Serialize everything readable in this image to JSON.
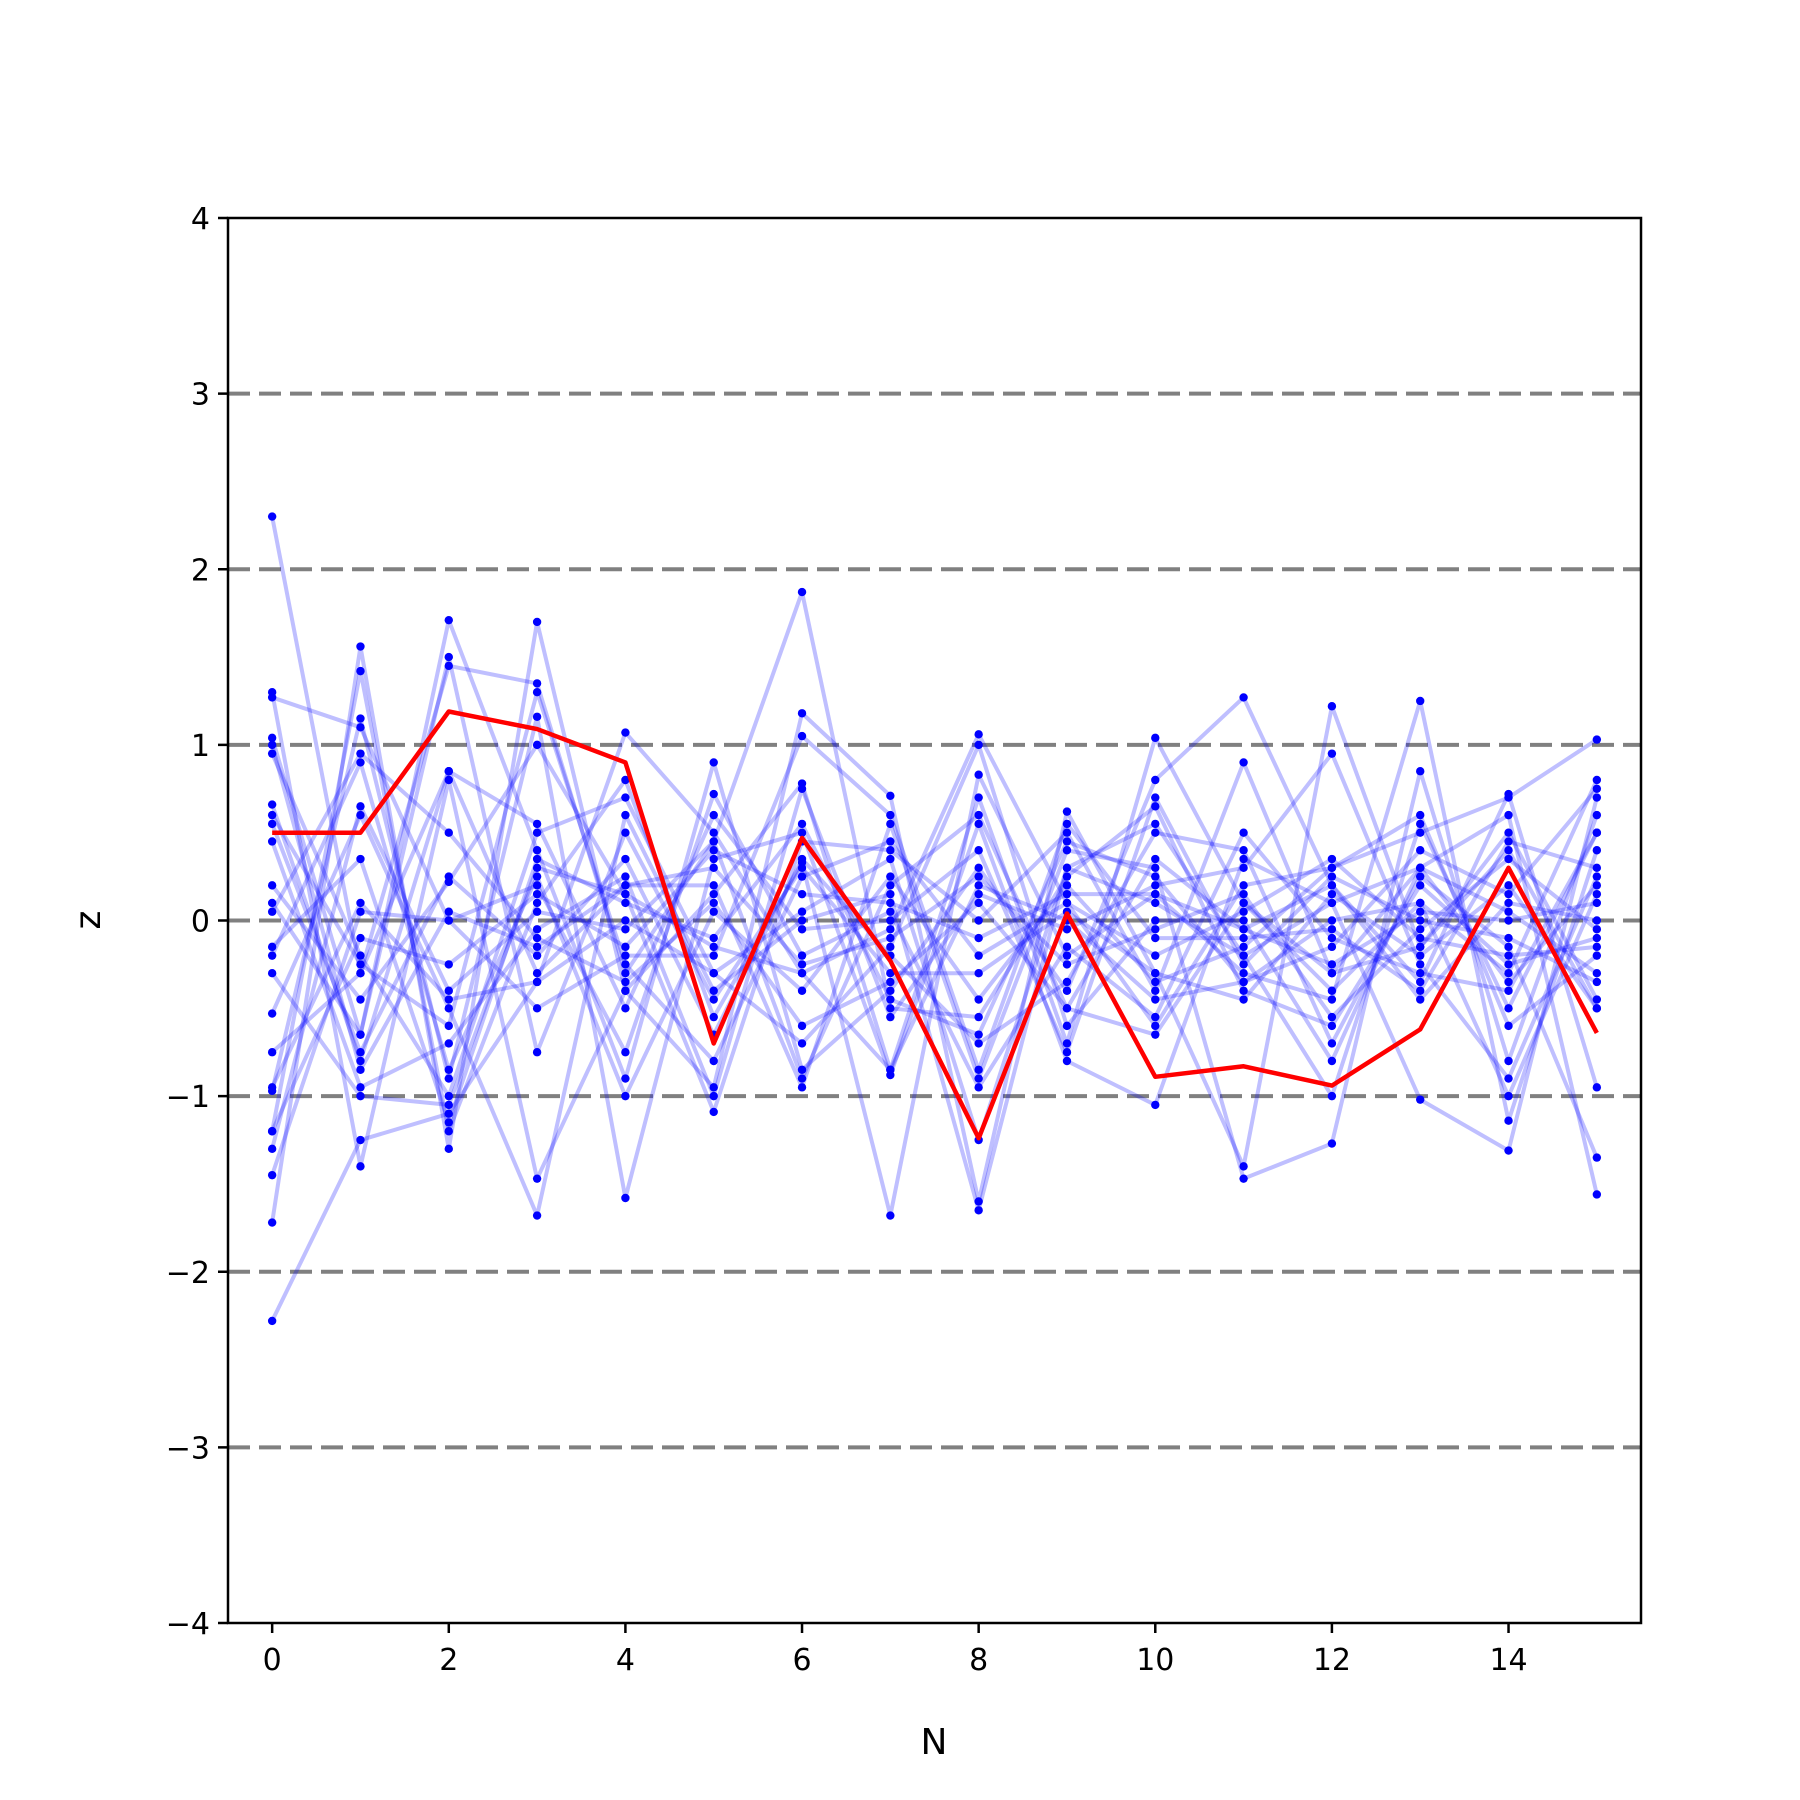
{
  "chart_data": {
    "type": "line",
    "title": "",
    "xlabel": "N",
    "ylabel": "z",
    "xlim": [
      -0.5,
      15.5
    ],
    "ylim": [
      -4,
      4
    ],
    "x_ticks": [
      0,
      2,
      4,
      6,
      8,
      10,
      12,
      14
    ],
    "y_ticks": [
      -4,
      -3,
      -2,
      -1,
      0,
      1,
      2,
      3,
      4
    ],
    "x_tick_labels": [
      "0",
      "2",
      "4",
      "6",
      "8",
      "10",
      "12",
      "14"
    ],
    "y_tick_labels": [
      "−4",
      "−3",
      "−2",
      "−1",
      "0",
      "1",
      "2",
      "3",
      "4"
    ],
    "reference_lines": [
      -3,
      -2,
      -1,
      0,
      1,
      2,
      3
    ],
    "legend": "none",
    "grid": false,
    "x": [
      0,
      1,
      2,
      3,
      4,
      5,
      6,
      7,
      8,
      9,
      10,
      11,
      12,
      13,
      14,
      15
    ],
    "highlight_series": {
      "color": "#ff0000",
      "values": [
        0.5,
        0.5,
        1.19,
        1.09,
        0.9,
        -0.7,
        0.47,
        -0.23,
        -1.24,
        0.04,
        -0.89,
        -0.83,
        -0.94,
        -0.62,
        0.3,
        -0.64
      ]
    },
    "background_series_color": "#0000ff",
    "background_series": [
      {
        "values": [
          2.3,
          -0.3,
          1.45,
          1.35,
          -0.3,
          0.45,
          1.87,
          -0.5,
          -0.55,
          0.25,
          0.65,
          -0.4,
          -0.6,
          0.2,
          -0.25,
          -0.1
        ]
      },
      {
        "values": [
          -2.28,
          -1.25,
          -1.1,
          -0.35,
          1.07,
          0.5,
          -0.3,
          -0.05,
          1.06,
          0.1,
          -0.6,
          0.2,
          0.3,
          0.5,
          0.7,
          1.03
        ]
      },
      {
        "values": [
          1.3,
          -1.4,
          0.8,
          -1.47,
          -0.4,
          0.15,
          0.78,
          -0.85,
          0.7,
          -0.7,
          1.04,
          0.1,
          -0.4,
          0.1,
          -0.3,
          0.8
        ]
      },
      {
        "values": [
          -1.72,
          1.56,
          -1.3,
          1.7,
          -0.4,
          -0.95,
          1.18,
          0.71,
          -1.6,
          0.62,
          -0.3,
          -1.4,
          1.22,
          -0.15,
          0.4,
          -0.5
        ]
      },
      {
        "values": [
          1.04,
          -0.65,
          1.71,
          0.4,
          -0.9,
          0.9,
          -0.85,
          -0.4,
          0.3,
          -0.4,
          0.8,
          1.27,
          0.2,
          -0.35,
          0.72,
          -0.95
        ]
      },
      {
        "values": [
          -1.2,
          1.42,
          -1.2,
          0.1,
          0.8,
          -0.55,
          0.33,
          -1.68,
          0.83,
          -0.2,
          0.15,
          -0.3,
          -0.45,
          1.25,
          -1.14,
          0.4
        ]
      },
      {
        "values": [
          0.66,
          -0.8,
          0.85,
          -0.3,
          0.2,
          0.2,
          -0.95,
          0.55,
          -0.9,
          0.4,
          0.3,
          -1.47,
          -1.27,
          0.85,
          -0.8,
          0.6
        ]
      },
      {
        "values": [
          -0.97,
          1.15,
          -0.9,
          1.16,
          -1.58,
          0.35,
          0.5,
          -0.88,
          0.55,
          -0.8,
          -1.05,
          0.35,
          0.1,
          -1.02,
          -1.31,
          0.7
        ]
      },
      {
        "values": [
          0.2,
          -0.45,
          0.22,
          1.0,
          0.15,
          -1.09,
          0.45,
          0.4,
          0.0,
          0.5,
          -0.4,
          0.9,
          -0.3,
          0.3,
          0.6,
          -1.56
        ]
      },
      {
        "values": [
          -0.53,
          0.6,
          -0.5,
          -1.68,
          0.6,
          -0.4,
          0.0,
          0.15,
          -1.65,
          0.3,
          0.55,
          -0.2,
          -1.0,
          0.55,
          -0.5,
          0.5
        ]
      },
      {
        "values": [
          0.95,
          -0.2,
          -1.0,
          0.5,
          0.7,
          -0.3,
          -0.7,
          -0.15,
          1.0,
          -0.6,
          0.0,
          0.0,
          -0.8,
          0.3,
          0.05,
          -0.3
        ]
      },
      {
        "values": [
          -1.45,
          0.05,
          0.0,
          0.2,
          -0.75,
          0.72,
          -0.2,
          0.05,
          -0.95,
          -0.15,
          -0.55,
          0.5,
          -0.1,
          -0.3,
          -0.4,
          0.5
        ]
      },
      {
        "values": [
          0.45,
          -0.95,
          -0.7,
          -0.05,
          0.25,
          -1.0,
          0.75,
          -0.55,
          0.15,
          -0.05,
          0.2,
          0.3,
          0.95,
          -0.25,
          -0.9,
          0.25
        ]
      },
      {
        "values": [
          -0.2,
          0.9,
          -0.85,
          0.25,
          -1.0,
          0.05,
          -0.4,
          0.25,
          -0.45,
          0.2,
          -0.35,
          -0.15,
          0.3,
          0.6,
          -0.6,
          -0.2
        ]
      },
      {
        "values": [
          1.27,
          1.1,
          0.0,
          -0.5,
          -0.2,
          -0.2,
          1.05,
          0.6,
          -0.85,
          0.55,
          -0.1,
          -0.1,
          -0.05,
          -0.4,
          0.45,
          0.3
        ]
      },
      {
        "values": [
          -0.75,
          -0.3,
          0.85,
          0.55,
          -0.5,
          0.6,
          -0.05,
          0.0,
          0.4,
          -0.75,
          0.7,
          -0.25,
          0.25,
          0.0,
          -0.1,
          -0.35
        ]
      },
      {
        "values": [
          0.1,
          -0.65,
          1.5,
          -0.75,
          0.5,
          -0.45,
          0.3,
          -0.3,
          -0.3,
          0.05,
          -0.3,
          -0.45,
          0.15,
          -0.2,
          0.2,
          -0.5
        ]
      },
      {
        "values": [
          -1.3,
          0.65,
          -0.4,
          0.05,
          -0.05,
          0.45,
          -0.9,
          0.2,
          0.6,
          -0.5,
          0.35,
          -0.05,
          -0.25,
          0.05,
          0.0,
          0.1
        ]
      },
      {
        "values": [
          0.6,
          -0.25,
          -0.6,
          1.3,
          -0.25,
          -0.8,
          0.25,
          0.45,
          -0.2,
          0.1,
          -0.2,
          0.05,
          0.35,
          -0.1,
          -0.2,
          -0.15
        ]
      },
      {
        "values": [
          -0.15,
          0.35,
          -1.15,
          0.35,
          0.1,
          -0.1,
          0.55,
          -0.45,
          -0.65,
          0.45,
          0.25,
          -0.35,
          -0.15,
          0.4,
          0.15,
          0.75
        ]
      },
      {
        "values": [
          1.0,
          -0.85,
          0.05,
          -0.15,
          0.2,
          0.3,
          -0.25,
          -0.1,
          0.25,
          -0.25,
          -0.05,
          0.15,
          -0.55,
          -0.05,
          0.35,
          -0.05
        ]
      },
      {
        "values": [
          -0.95,
          0.1,
          -0.45,
          -0.35,
          0.0,
          -0.3,
          0.05,
          0.35,
          -1.25,
          0.3,
          0.1,
          -0.2,
          0.1,
          0.3,
          -0.35,
          0.2
        ]
      },
      {
        "values": [
          0.05,
          0.95,
          0.5,
          -0.1,
          -0.35,
          0.1,
          -0.6,
          -0.35,
          0.1,
          -0.5,
          -0.65,
          0.1,
          -0.3,
          -0.15,
          0.5,
          -0.45
        ]
      },
      {
        "values": [
          -1.2,
          -0.1,
          -0.25,
          0.15,
          -0.15,
          0.4,
          0.15,
          0.1,
          -0.1,
          0.15,
          0.15,
          -0.05,
          0.2,
          -0.45,
          0.1,
          0.0
        ]
      },
      {
        "values": [
          0.55,
          -0.75,
          0.25,
          -0.2,
          0.35,
          -0.65,
          0.35,
          -0.2,
          -0.7,
          -0.35,
          0.5,
          0.4,
          -0.7,
          0.25,
          -0.15,
          -1.35
        ]
      },
      {
        "values": [
          -0.3,
          -1.0,
          -1.05,
          0.3,
          0.15,
          -0.15,
          -0.3,
          -0.85,
          0.2,
          0.0,
          -0.45,
          -0.35,
          0.0,
          0.1,
          -1.0,
          0.15
        ]
      }
    ]
  }
}
